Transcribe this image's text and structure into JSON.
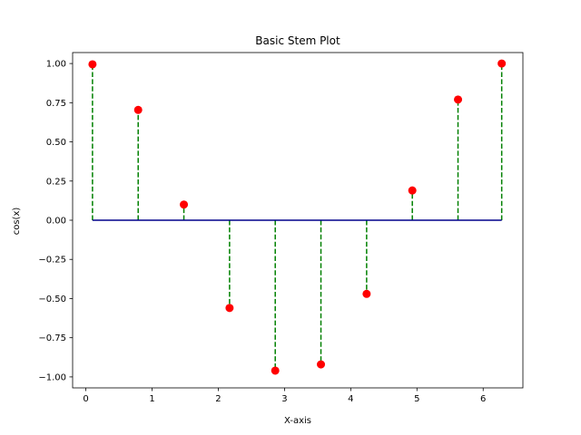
{
  "chart_data": {
    "type": "stem",
    "title": "Basic Stem Plot",
    "xlabel": "X-axis",
    "ylabel": "cos(x)",
    "xlim": [
      -0.2,
      6.6
    ],
    "ylim": [
      -1.07,
      1.07
    ],
    "x_ticks": [
      0,
      1,
      2,
      3,
      4,
      5,
      6
    ],
    "x_tick_labels": [
      "0",
      "1",
      "2",
      "3",
      "4",
      "5",
      "6"
    ],
    "y_ticks": [
      1.0,
      0.75,
      0.5,
      0.25,
      0.0,
      -0.25,
      -0.5,
      -0.75,
      -1.0
    ],
    "y_tick_labels": [
      "1.00",
      "0.75",
      "0.50",
      "0.25",
      "0.00",
      "−0.25",
      "−0.50",
      "−0.75",
      "−1.00"
    ],
    "x": [
      0.1,
      0.79,
      1.48,
      2.17,
      2.86,
      3.55,
      4.24,
      4.93,
      5.62,
      6.28
    ],
    "y": [
      0.995,
      0.704,
      0.1,
      -0.56,
      -0.96,
      -0.92,
      -0.47,
      0.19,
      0.77,
      1.0
    ],
    "baseline": 0.0,
    "grid": false,
    "colors": {
      "marker": "#ff0000",
      "stem": "#008000",
      "baseline": "#00008b"
    }
  }
}
